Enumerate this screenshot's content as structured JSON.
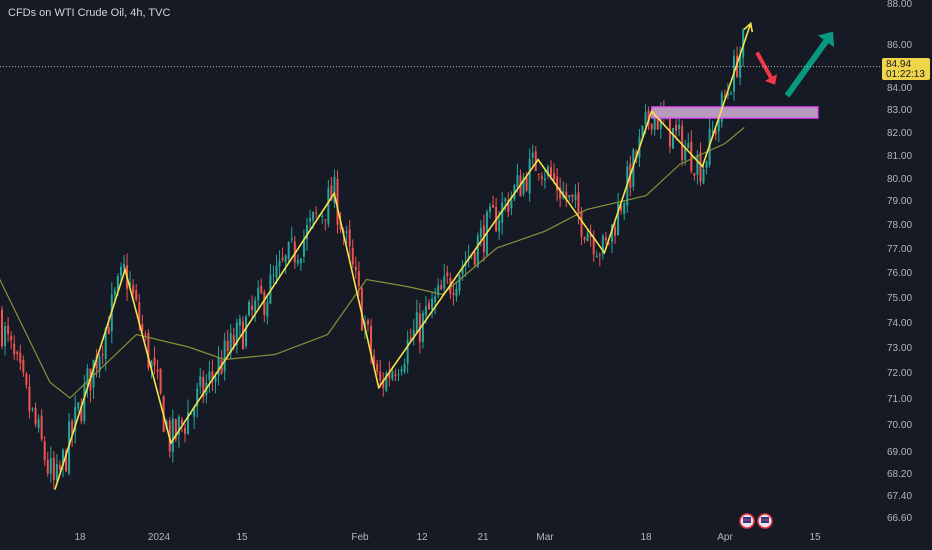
{
  "header": {
    "title": "CFDs on WTI Crude Oil, 4h, TVC"
  },
  "price_tag": {
    "price": "84.94",
    "countdown": "01:22:13"
  },
  "colors": {
    "background": "#161a25",
    "up_candle": "#26a69a",
    "down_candle": "#ef5350",
    "moving_average": "#8a8f3a",
    "trendline": "#f5e34a",
    "zone_fill": "#b89abf",
    "zone_border": "#e040fb",
    "arrow_down": "#f23645",
    "arrow_up": "#089981",
    "price_tag_bg": "#f0d54b"
  },
  "chart_data": {
    "type": "candlestick",
    "title": "CFDs on WTI Crude Oil, 4h, TVC",
    "y_ticks": [
      "88.00",
      "86.00",
      "84.00",
      "83.00",
      "82.00",
      "81.00",
      "80.00",
      "79.00",
      "78.00",
      "77.00",
      "76.00",
      "75.00",
      "74.00",
      "73.00",
      "72.00",
      "71.00",
      "70.00",
      "69.00",
      "68.20",
      "67.40",
      "66.60"
    ],
    "x_ticks": [
      "18",
      "2024",
      "15",
      "Feb",
      "12",
      "21",
      "Mar",
      "18",
      "Apr",
      "15"
    ],
    "y_scale": "log",
    "ylim": [
      66.2,
      88.4
    ],
    "last_price": 84.94,
    "zigzag_pattern": [
      {
        "date": "Dec 13",
        "price": 67.6
      },
      {
        "date": "Dec 26",
        "price": 76.1
      },
      {
        "date": "Jan 3",
        "price": 69.3
      },
      {
        "date": "Jan 29",
        "price": 79.3
      },
      {
        "date": "Feb 5",
        "price": 71.4
      },
      {
        "date": "Feb 29",
        "price": 80.8
      },
      {
        "date": "Mar 11",
        "price": 76.8
      },
      {
        "date": "Mar 19",
        "price": 82.9
      },
      {
        "date": "Mar 28",
        "price": 80.5
      },
      {
        "date": "Apr 5",
        "price": 87.0
      }
    ],
    "resistance_zone": {
      "from_date": "Mar 19",
      "to_date": "Apr 15",
      "low": 82.6,
      "high": 83.1
    },
    "forecast_arrows": [
      {
        "direction": "down",
        "from_price": 85.6,
        "to_price": 84.1
      },
      {
        "direction": "up",
        "from_price": 83.6,
        "to_price": 86.6
      }
    ],
    "moving_average_path": [
      {
        "date": "Dec 1",
        "price": 76.1
      },
      {
        "date": "Dec 12",
        "price": 71.6
      },
      {
        "date": "Dec 16",
        "price": 71.0
      },
      {
        "date": "Dec 28",
        "price": 73.5
      },
      {
        "date": "Jan 6",
        "price": 73.0
      },
      {
        "date": "Jan 12",
        "price": 72.5
      },
      {
        "date": "Jan 20",
        "price": 72.7
      },
      {
        "date": "Jan 28",
        "price": 73.5
      },
      {
        "date": "Feb 3",
        "price": 75.7
      },
      {
        "date": "Feb 10",
        "price": 75.4
      },
      {
        "date": "Feb 15",
        "price": 75.1
      },
      {
        "date": "Feb 23",
        "price": 77.0
      },
      {
        "date": "Mar 1",
        "price": 77.7
      },
      {
        "date": "Mar 8",
        "price": 78.6
      },
      {
        "date": "Mar 18",
        "price": 79.2
      },
      {
        "date": "Mar 24",
        "price": 80.6
      },
      {
        "date": "Apr 1",
        "price": 81.5
      },
      {
        "date": "Apr 4",
        "price": 82.2
      }
    ],
    "candle_seed": 7,
    "grid": false,
    "legend": "none"
  }
}
